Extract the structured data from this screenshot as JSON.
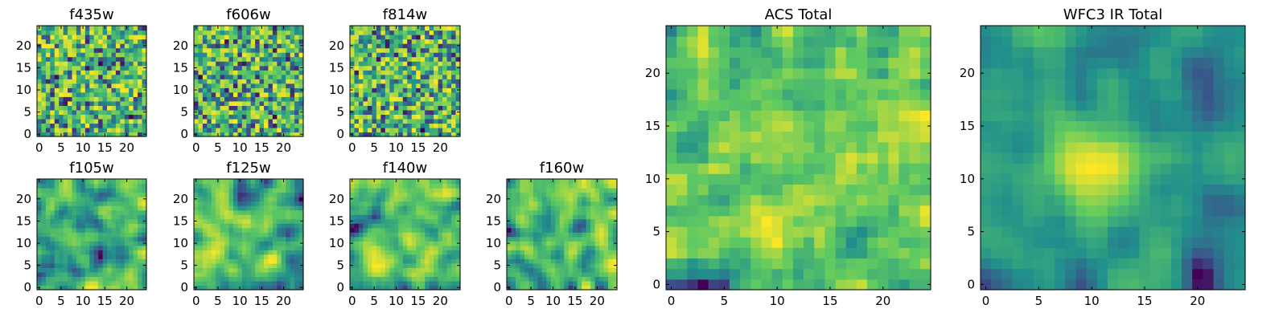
{
  "figure": {
    "colormap": [
      "#440154",
      "#3b528b",
      "#21918c",
      "#5ec962",
      "#fde725"
    ]
  },
  "chart_data": [
    {
      "type": "heatmap",
      "title": "f435w",
      "grid_size": 25,
      "xlim": [
        0,
        24
      ],
      "ylim": [
        0,
        24
      ],
      "xticks": [
        0,
        5,
        10,
        15,
        20
      ],
      "yticks": [
        0,
        5,
        10,
        15,
        20
      ],
      "seed": 11,
      "smooth": 0,
      "blob_strength": 0
    },
    {
      "type": "heatmap",
      "title": "f606w",
      "grid_size": 25,
      "xlim": [
        0,
        24
      ],
      "ylim": [
        0,
        24
      ],
      "xticks": [
        0,
        5,
        10,
        15,
        20
      ],
      "yticks": [
        0,
        5,
        10,
        15,
        20
      ],
      "seed": 23,
      "smooth": 0,
      "blob_strength": 0
    },
    {
      "type": "heatmap",
      "title": "f814w",
      "grid_size": 25,
      "xlim": [
        0,
        24
      ],
      "ylim": [
        0,
        24
      ],
      "xticks": [
        0,
        5,
        10,
        15,
        20
      ],
      "yticks": [
        0,
        5,
        10,
        15,
        20
      ],
      "seed": 37,
      "smooth": 0,
      "blob_strength": 0
    },
    {
      "type": "heatmap",
      "title": "f105w",
      "grid_size": 25,
      "xlim": [
        0,
        24
      ],
      "ylim": [
        0,
        24
      ],
      "xticks": [
        0,
        5,
        10,
        15,
        20
      ],
      "yticks": [
        0,
        5,
        10,
        15,
        20
      ],
      "seed": 41,
      "smooth": 1,
      "blob_strength": 0
    },
    {
      "type": "heatmap",
      "title": "f125w",
      "grid_size": 25,
      "xlim": [
        0,
        24
      ],
      "ylim": [
        0,
        24
      ],
      "xticks": [
        0,
        5,
        10,
        15,
        20
      ],
      "yticks": [
        0,
        5,
        10,
        15,
        20
      ],
      "seed": 53,
      "smooth": 1,
      "blob_strength": 0
    },
    {
      "type": "heatmap",
      "title": "f140w",
      "grid_size": 25,
      "xlim": [
        0,
        24
      ],
      "ylim": [
        0,
        24
      ],
      "xticks": [
        0,
        5,
        10,
        15,
        20
      ],
      "yticks": [
        0,
        5,
        10,
        15,
        20
      ],
      "seed": 67,
      "smooth": 1,
      "blob_strength": 0
    },
    {
      "type": "heatmap",
      "title": "f160w",
      "grid_size": 25,
      "xlim": [
        0,
        24
      ],
      "ylim": [
        0,
        24
      ],
      "xticks": [
        0,
        5,
        10,
        15,
        20
      ],
      "yticks": [
        0,
        5,
        10,
        15,
        20
      ],
      "seed": 79,
      "smooth": 1,
      "blob_strength": 0
    },
    {
      "type": "heatmap",
      "title": "ACS Total",
      "grid_size": 25,
      "xlim": [
        0,
        24
      ],
      "ylim": [
        0,
        24
      ],
      "xticks": [
        0,
        5,
        10,
        15,
        20
      ],
      "yticks": [
        0,
        5,
        10,
        15,
        20
      ],
      "seed": 97,
      "smooth": 0.5,
      "blob_strength": 0
    },
    {
      "type": "heatmap",
      "title": "WFC3 IR Total",
      "grid_size": 25,
      "xlim": [
        0,
        24
      ],
      "ylim": [
        0,
        24
      ],
      "xticks": [
        0,
        5,
        10,
        15,
        20
      ],
      "yticks": [
        0,
        5,
        10,
        15,
        20
      ],
      "seed": 131,
      "smooth": 1,
      "blob_strength": 0.55,
      "blob_center": [
        11,
        11
      ]
    }
  ]
}
